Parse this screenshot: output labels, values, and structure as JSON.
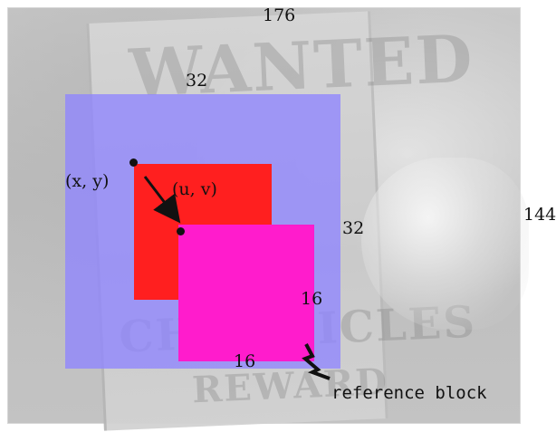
{
  "diagram": {
    "labels": {
      "outer_width": "176",
      "outer_height": "144",
      "search_block_width": "32",
      "search_block_height": "32",
      "reference_block_height": "16",
      "reference_block_width": "16",
      "point_xy": "(x, y)",
      "point_uv": "(u, v)",
      "reference_block": "reference block"
    },
    "colors": {
      "search_block": "#9085ff",
      "current_block": "#ff1f1f",
      "reference_block": "#ff1ccc",
      "ink": "#111111"
    },
    "poster_text": {
      "top": "WANTED",
      "middle": "CHRONICLES",
      "bottom": "REWARD"
    },
    "icons": {
      "motion_arrow": "arrow-icon",
      "reference_pointer": "zigzag-pointer-icon"
    }
  }
}
